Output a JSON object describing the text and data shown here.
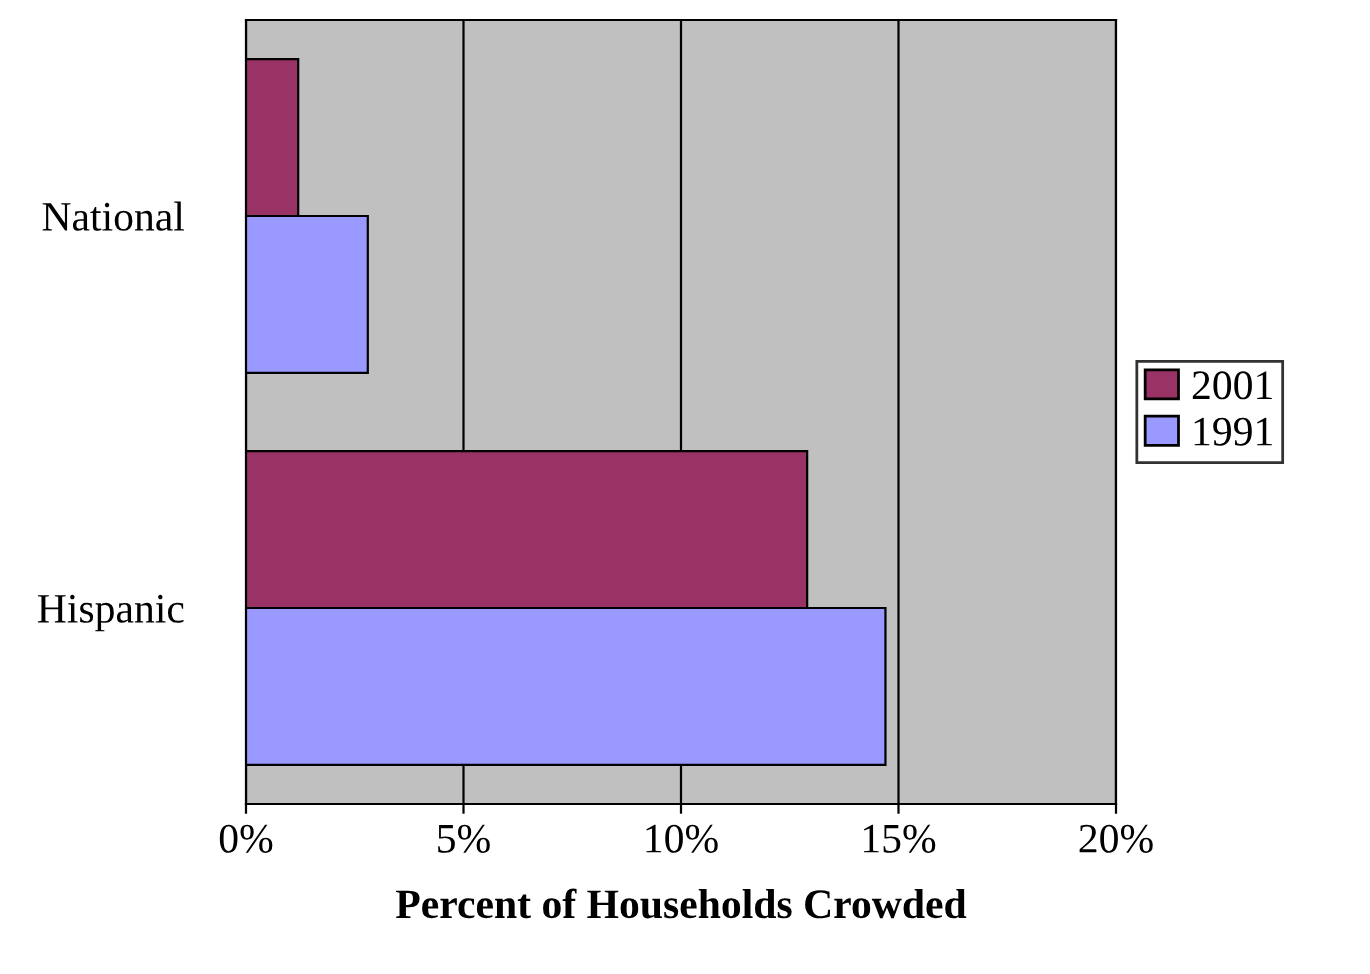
{
  "chart_data": {
    "type": "bar",
    "orientation": "horizontal",
    "xlabel": "Percent of Households Crowded",
    "categories": [
      "National",
      "Hispanic"
    ],
    "series": [
      {
        "name": "2001",
        "color": "#993366",
        "values": [
          1.2,
          12.9
        ]
      },
      {
        "name": "1991",
        "color": "#9999ff",
        "values": [
          2.8,
          14.7
        ]
      }
    ],
    "xlim": [
      0,
      20
    ],
    "xticks": [
      {
        "value": 0,
        "label": "0%"
      },
      {
        "value": 5,
        "label": "5%"
      },
      {
        "value": 10,
        "label": "10%"
      },
      {
        "value": 15,
        "label": "15%"
      },
      {
        "value": 20,
        "label": "20%"
      }
    ],
    "grid": "x",
    "legend": "right"
  }
}
